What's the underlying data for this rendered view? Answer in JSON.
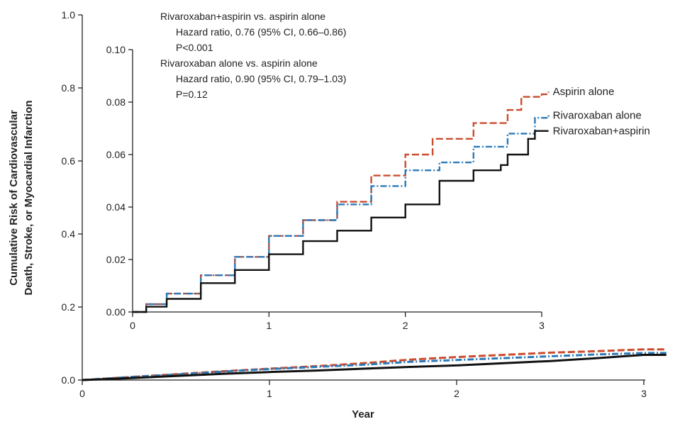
{
  "chart_data": [
    {
      "type": "line",
      "panel": "main",
      "xlabel": "Year",
      "ylabel_line1": "Cumulative Risk of Cardiovascular",
      "ylabel_line2": "Death, Stroke, or Myocardial Infarction",
      "xlim": [
        0,
        3
      ],
      "ylim": [
        0,
        1.0
      ],
      "x_ticks": [
        "0",
        "1",
        "2",
        "3"
      ],
      "y_ticks": [
        "0.0",
        "0.2",
        "0.4",
        "0.6",
        "0.8",
        "1.0"
      ],
      "series": [
        {
          "key": "aspirin",
          "color": "#cc4b2c",
          "style": "dashed",
          "points": [
            [
              0,
              0
            ],
            [
              0.25,
              0.008
            ],
            [
              0.5,
              0.016
            ],
            [
              0.75,
              0.024
            ],
            [
              1.0,
              0.031
            ],
            [
              1.25,
              0.038
            ],
            [
              1.5,
              0.046
            ],
            [
              1.75,
              0.056
            ],
            [
              2.0,
              0.063
            ],
            [
              2.25,
              0.069
            ],
            [
              2.5,
              0.075
            ],
            [
              2.75,
              0.079
            ],
            [
              3.0,
              0.084
            ],
            [
              3.12,
              0.084
            ]
          ]
        },
        {
          "key": "rivaroxaban",
          "color": "#2a7ab9",
          "style": "dashdot",
          "points": [
            [
              0,
              0
            ],
            [
              0.25,
              0.008
            ],
            [
              0.5,
              0.015
            ],
            [
              0.75,
              0.023
            ],
            [
              1.0,
              0.03
            ],
            [
              1.25,
              0.036
            ],
            [
              1.5,
              0.042
            ],
            [
              1.75,
              0.05
            ],
            [
              2.0,
              0.055
            ],
            [
              2.25,
              0.06
            ],
            [
              2.5,
              0.065
            ],
            [
              2.75,
              0.07
            ],
            [
              3.0,
              0.074
            ],
            [
              3.12,
              0.074
            ]
          ]
        },
        {
          "key": "combo",
          "color": "#111111",
          "style": "solid",
          "points": [
            [
              0,
              0
            ],
            [
              0.25,
              0.005
            ],
            [
              0.5,
              0.011
            ],
            [
              0.75,
              0.017
            ],
            [
              1.0,
              0.022
            ],
            [
              1.25,
              0.026
            ],
            [
              1.5,
              0.031
            ],
            [
              1.75,
              0.036
            ],
            [
              2.0,
              0.04
            ],
            [
              2.25,
              0.046
            ],
            [
              2.5,
              0.052
            ],
            [
              2.75,
              0.06
            ],
            [
              3.0,
              0.069
            ],
            [
              3.12,
              0.069
            ]
          ]
        }
      ]
    },
    {
      "type": "line",
      "panel": "inset",
      "xlim": [
        0,
        3
      ],
      "ylim": [
        0,
        0.1
      ],
      "x_ticks": [
        "0",
        "1",
        "2",
        "3"
      ],
      "y_ticks": [
        "0.00",
        "0.02",
        "0.04",
        "0.06",
        "0.08",
        "0.10"
      ],
      "series": [
        {
          "name": "Aspirin alone",
          "color": "#cc4b2c",
          "style": "dashed",
          "points": [
            [
              0,
              0
            ],
            [
              0.1,
              0.003
            ],
            [
              0.25,
              0.007
            ],
            [
              0.5,
              0.014
            ],
            [
              0.75,
              0.021
            ],
            [
              1.0,
              0.029
            ],
            [
              1.25,
              0.035
            ],
            [
              1.5,
              0.042
            ],
            [
              1.75,
              0.052
            ],
            [
              2.0,
              0.06
            ],
            [
              2.2,
              0.066
            ],
            [
              2.5,
              0.072
            ],
            [
              2.75,
              0.077
            ],
            [
              2.85,
              0.082
            ],
            [
              3.0,
              0.083
            ],
            [
              3.05,
              0.084
            ]
          ]
        },
        {
          "name": "Rivaroxaban alone",
          "color": "#2a7ab9",
          "style": "dashdot",
          "points": [
            [
              0,
              0
            ],
            [
              0.1,
              0.003
            ],
            [
              0.25,
              0.007
            ],
            [
              0.5,
              0.014
            ],
            [
              0.75,
              0.021
            ],
            [
              1.0,
              0.029
            ],
            [
              1.25,
              0.035
            ],
            [
              1.5,
              0.041
            ],
            [
              1.75,
              0.048
            ],
            [
              2.0,
              0.054
            ],
            [
              2.25,
              0.057
            ],
            [
              2.5,
              0.063
            ],
            [
              2.75,
              0.068
            ],
            [
              2.95,
              0.074
            ],
            [
              3.05,
              0.075
            ]
          ]
        },
        {
          "name": "Rivaroxaban+aspirin",
          "color": "#111111",
          "style": "solid",
          "points": [
            [
              0,
              0
            ],
            [
              0.1,
              0.002
            ],
            [
              0.25,
              0.005
            ],
            [
              0.5,
              0.011
            ],
            [
              0.75,
              0.016
            ],
            [
              1.0,
              0.022
            ],
            [
              1.25,
              0.027
            ],
            [
              1.5,
              0.031
            ],
            [
              1.75,
              0.036
            ],
            [
              2.0,
              0.041
            ],
            [
              2.25,
              0.05
            ],
            [
              2.5,
              0.054
            ],
            [
              2.7,
              0.056
            ],
            [
              2.75,
              0.06
            ],
            [
              2.9,
              0.066
            ],
            [
              2.95,
              0.069
            ],
            [
              3.05,
              0.069
            ]
          ]
        }
      ],
      "annotations": {
        "line1": "Rivaroxaban+aspirin vs. aspirin alone",
        "line2": "Hazard ratio, 0.76 (95% CI, 0.66–0.86)",
        "line3": "P<0.001",
        "line4": "Rivaroxaban alone vs. aspirin alone",
        "line5": "Hazard ratio, 0.90 (95% CI, 0.79–1.03)",
        "line6": "P=0.12"
      }
    }
  ]
}
